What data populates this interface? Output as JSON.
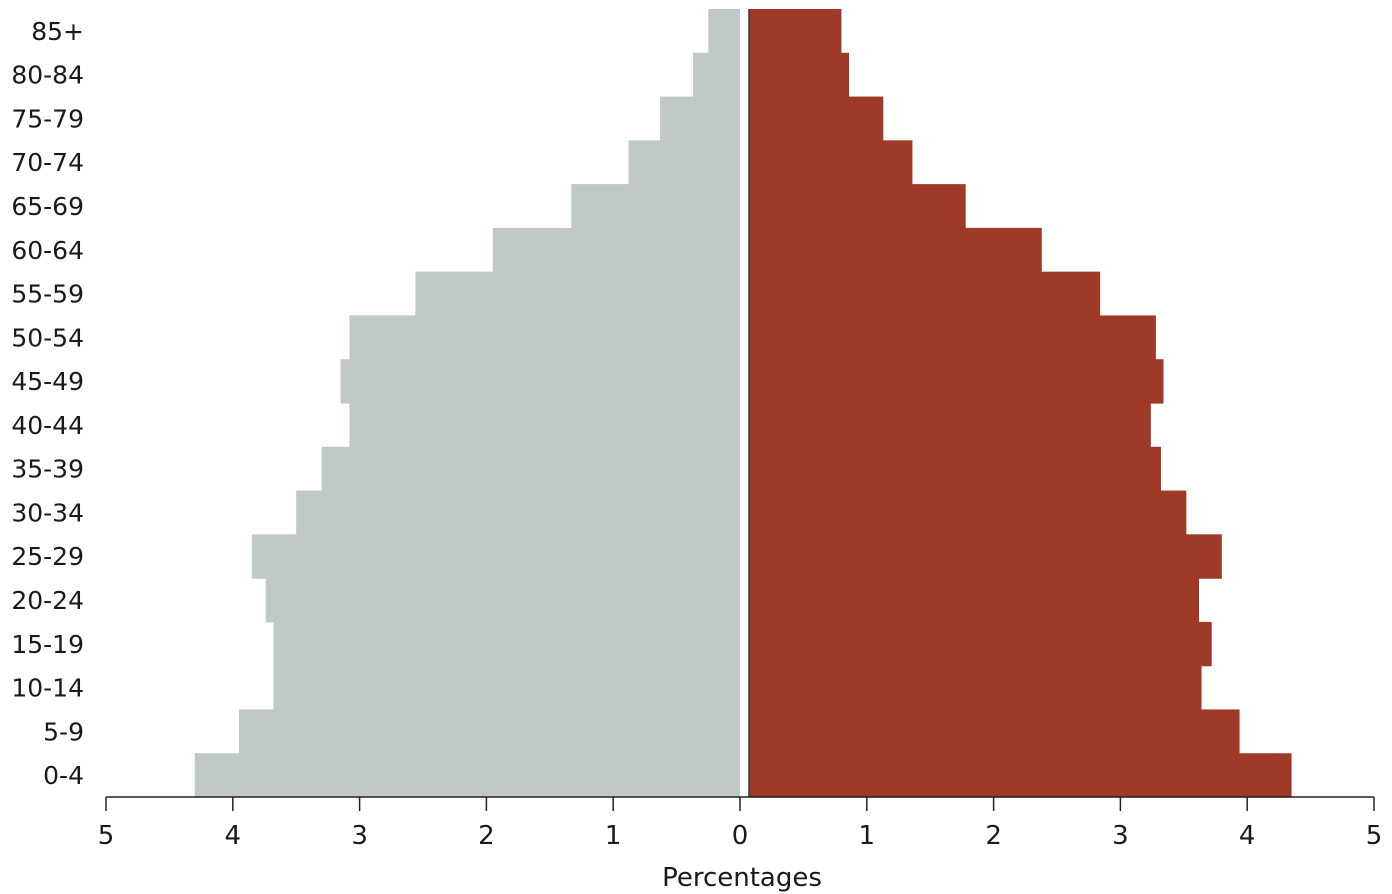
{
  "chart_data": {
    "type": "bar",
    "orientation": "horizontal-pyramid",
    "categories": [
      "0-4",
      "5-9",
      "10-14",
      "15-19",
      "20-24",
      "25-29",
      "30-34",
      "35-39",
      "40-44",
      "45-49",
      "50-54",
      "55-59",
      "60-64",
      "65-69",
      "70-74",
      "75-79",
      "80-84",
      "85+"
    ],
    "series": [
      {
        "side": "left",
        "color": "#c0c9c5",
        "values": [
          4.3,
          3.95,
          3.68,
          3.68,
          3.74,
          3.85,
          3.5,
          3.3,
          3.08,
          3.15,
          3.08,
          2.56,
          1.95,
          1.33,
          0.88,
          0.63,
          0.37,
          0.25
        ]
      },
      {
        "side": "right",
        "color": "#9f3928",
        "values": [
          4.35,
          3.94,
          3.64,
          3.72,
          3.62,
          3.8,
          3.52,
          3.32,
          3.24,
          3.34,
          3.28,
          2.84,
          2.38,
          1.78,
          1.36,
          1.13,
          0.86,
          0.8
        ]
      }
    ],
    "x_ticks": [
      "5",
      "4",
      "3",
      "2",
      "1",
      "0",
      "1",
      "2",
      "3",
      "4",
      "5"
    ],
    "xlim": [
      -5,
      5
    ],
    "xlabel": "Percentages",
    "ylabel": "",
    "title": "",
    "grid": false
  }
}
